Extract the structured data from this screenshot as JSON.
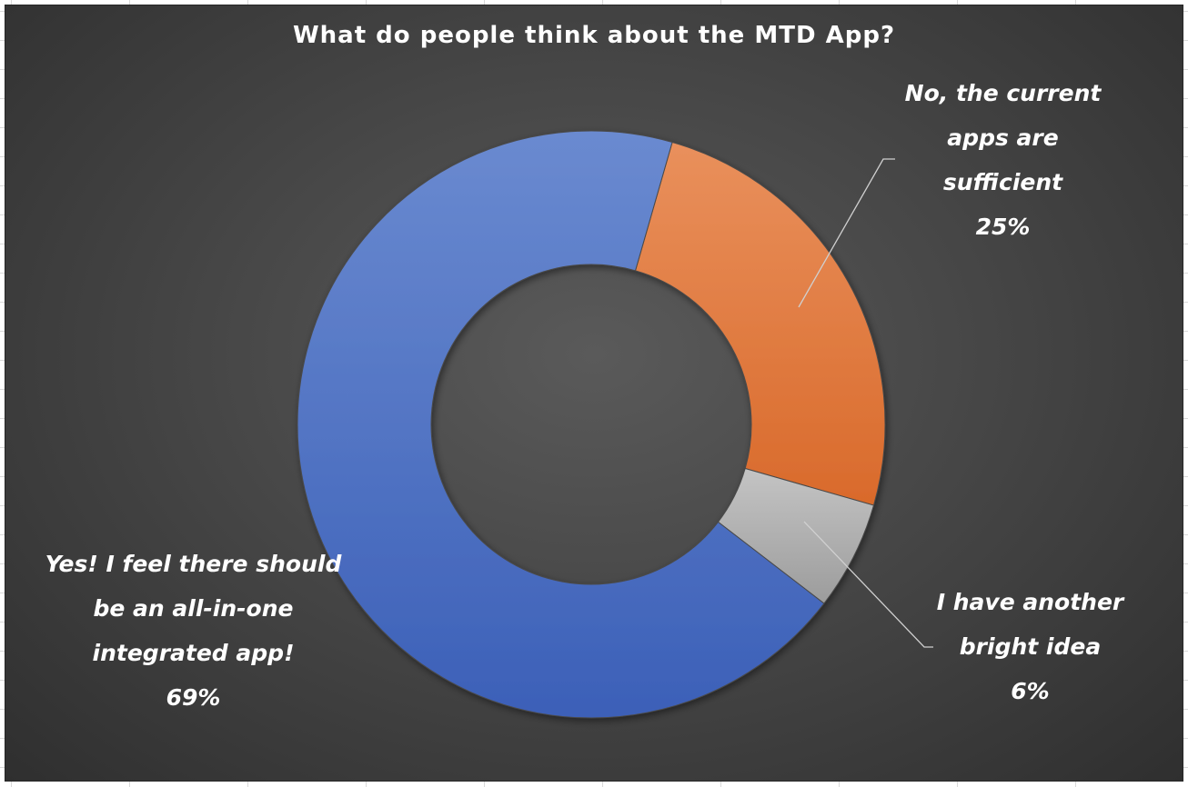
{
  "chart_data": {
    "type": "pie",
    "variant": "donut",
    "title": "What do people think about the MTD App?",
    "slices": [
      {
        "label": "No, the current apps are sufficient",
        "label_lines": "No, the current\napps are\nsufficient",
        "value": 25,
        "percent_label": "25%",
        "color": "#e2793a"
      },
      {
        "label": "I have another bright idea",
        "label_lines": "I have another\nbright idea",
        "value": 6,
        "percent_label": "6%",
        "color": "#a5a5a5"
      },
      {
        "label": "Yes! I feel there should be an all-in-one integrated app!",
        "label_lines": "Yes! I feel there should\nbe an all-in-one\nintegrated app!",
        "value": 69,
        "percent_label": "69%",
        "color": "#4a72c4"
      }
    ],
    "legend": "none",
    "data_labels": "outside with leader lines"
  }
}
